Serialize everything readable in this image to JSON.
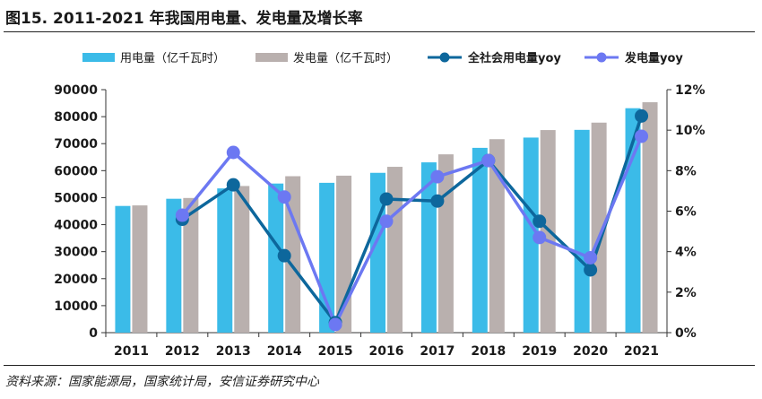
{
  "title": "图15. 2011-2021 年我国用电量、发电量及增长率",
  "source": "资料来源：国家能源局，国家统计局，安信证券研究中心",
  "colors": {
    "consumption_bar": "#3bbbe8",
    "generation_bar": "#b9b0ae",
    "consumption_yoy": "#0d679c",
    "generation_yoy": "#6c78f2"
  },
  "chart_data": {
    "type": "bar",
    "categories": [
      "2011",
      "2012",
      "2013",
      "2014",
      "2015",
      "2016",
      "2017",
      "2018",
      "2019",
      "2020",
      "2021"
    ],
    "series": [
      {
        "name": "用电量（亿千瓦时）",
        "kind": "bar",
        "axis": "left",
        "values": [
          46928,
          49591,
          53423,
          55233,
          55500,
          59198,
          63077,
          68449,
          72255,
          75110,
          83128
        ]
      },
      {
        "name": "发电量（亿千瓦时）",
        "kind": "bar",
        "axis": "left",
        "values": [
          47130,
          49876,
          54316,
          57944,
          58146,
          61425,
          66044,
          71661,
          75034,
          77791,
          85342
        ]
      },
      {
        "name": "全社会用电量yoy",
        "kind": "line",
        "axis": "right",
        "values": [
          null,
          5.6,
          7.3,
          3.8,
          0.5,
          6.6,
          6.5,
          8.5,
          5.5,
          3.1,
          10.7
        ]
      },
      {
        "name": "发电量yoy",
        "kind": "line",
        "axis": "right",
        "values": [
          null,
          5.8,
          8.9,
          6.7,
          0.4,
          5.5,
          7.7,
          8.5,
          4.7,
          3.7,
          9.7
        ]
      }
    ],
    "left_axis": {
      "min": 0,
      "max": 90000,
      "ticks": [
        "0",
        "10000",
        "20000",
        "30000",
        "40000",
        "50000",
        "60000",
        "70000",
        "80000",
        "90000"
      ]
    },
    "right_axis": {
      "min": 0,
      "max": 12,
      "ticks": [
        "0%",
        "2%",
        "4%",
        "6%",
        "8%",
        "10%",
        "12%"
      ]
    },
    "legend_position": "top"
  }
}
